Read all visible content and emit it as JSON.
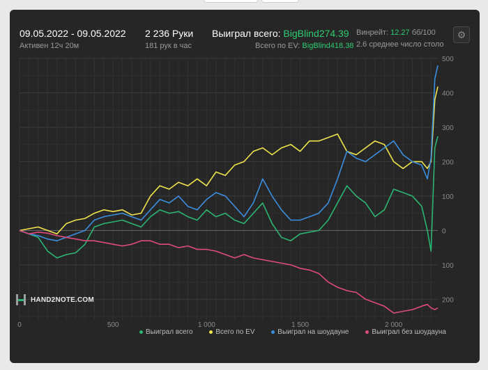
{
  "header": {
    "date_range": "09.05.2022 - 09.05.2022",
    "active_time": "Активен 12ч 20м",
    "hands": "2 236 Руки",
    "hands_per_hour": "181 рук в час",
    "won_total_label": "Выиграл всего:",
    "won_total_value": "BigBlind274.39",
    "ev_total_label": "Всего по EV:",
    "ev_total_value": "BigBlind418.38",
    "winrate_label": "Винрейт:",
    "winrate_value": "12.27",
    "winrate_unit": "бб/100",
    "avg_tables": "2.6 среднее число столов"
  },
  "logo": {
    "text": "HAND2NOTE.COM"
  },
  "colors": {
    "panel": "#262626",
    "won_total": "#2bb673",
    "ev_total": "#f2e54b",
    "showdown": "#3b8fe0",
    "no_showdown": "#e04a7c",
    "accent_green": "#2ecc71"
  },
  "chart_data": {
    "type": "line",
    "xlim": [
      0,
      2236
    ],
    "ylim": [
      -260,
      500
    ],
    "x_ticks": [
      0,
      500,
      1000,
      1500,
      2000
    ],
    "x_tick_labels": [
      "0",
      "500",
      "1 000",
      "1 500",
      "2 000"
    ],
    "y_ticks": [
      500,
      400,
      300,
      200,
      100,
      0,
      -100,
      -200
    ],
    "y_tick_labels": [
      "500",
      "400",
      "300",
      "200",
      "100",
      "0",
      "100",
      "200"
    ],
    "grid": true,
    "legend_position": "bottom-right",
    "x": [
      0,
      50,
      100,
      150,
      200,
      250,
      300,
      350,
      400,
      450,
      500,
      550,
      600,
      650,
      700,
      750,
      800,
      850,
      900,
      950,
      1000,
      1050,
      1100,
      1150,
      1200,
      1250,
      1300,
      1350,
      1400,
      1450,
      1500,
      1550,
      1600,
      1650,
      1700,
      1750,
      1800,
      1850,
      1900,
      1950,
      2000,
      2050,
      2100,
      2150,
      2180,
      2200,
      2220,
      2236
    ],
    "series": [
      {
        "name": "Выиграл всего",
        "color": "#2bb673",
        "values": [
          0,
          -10,
          -20,
          -60,
          -80,
          -70,
          -65,
          -40,
          10,
          20,
          25,
          30,
          20,
          10,
          40,
          60,
          50,
          55,
          40,
          30,
          60,
          40,
          50,
          30,
          20,
          50,
          80,
          20,
          -20,
          -30,
          -10,
          -5,
          0,
          30,
          80,
          130,
          100,
          80,
          40,
          60,
          120,
          110,
          100,
          70,
          0,
          -60,
          240,
          274
        ]
      },
      {
        "name": "Всего по EV",
        "color": "#f2e54b",
        "values": [
          0,
          5,
          10,
          0,
          -10,
          20,
          30,
          35,
          50,
          60,
          55,
          60,
          45,
          50,
          100,
          130,
          120,
          140,
          130,
          150,
          130,
          170,
          160,
          190,
          200,
          230,
          240,
          220,
          240,
          250,
          230,
          260,
          260,
          270,
          280,
          230,
          220,
          240,
          260,
          250,
          200,
          180,
          200,
          200,
          180,
          200,
          380,
          418
        ]
      },
      {
        "name": "Выиграл на шоудауне",
        "color": "#3b8fe0",
        "values": [
          0,
          -10,
          -15,
          -25,
          -30,
          -20,
          -10,
          0,
          30,
          40,
          45,
          50,
          40,
          30,
          60,
          90,
          80,
          100,
          70,
          60,
          90,
          110,
          100,
          70,
          40,
          80,
          150,
          100,
          60,
          30,
          30,
          40,
          50,
          80,
          150,
          230,
          210,
          200,
          220,
          240,
          260,
          220,
          200,
          190,
          150,
          210,
          440,
          480
        ]
      },
      {
        "name": "Выиграл без шоудауна",
        "color": "#e04a7c",
        "values": [
          0,
          -10,
          -5,
          -8,
          -15,
          -20,
          -25,
          -30,
          -30,
          -35,
          -40,
          -45,
          -40,
          -30,
          -30,
          -40,
          -40,
          -50,
          -45,
          -55,
          -55,
          -60,
          -70,
          -80,
          -70,
          -80,
          -85,
          -90,
          -95,
          -100,
          -110,
          -115,
          -125,
          -150,
          -165,
          -175,
          -180,
          -200,
          -210,
          -220,
          -240,
          -235,
          -230,
          -220,
          -215,
          -225,
          -230,
          -225
        ]
      }
    ]
  }
}
